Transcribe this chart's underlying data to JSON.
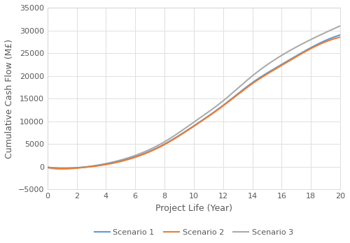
{
  "xlabel": "Project Life (Year)",
  "ylabel": "Cumulative Cash Flow (M£)",
  "xlim": [
    0,
    20
  ],
  "ylim": [
    -5000,
    35000
  ],
  "xticks": [
    0,
    2,
    4,
    6,
    8,
    10,
    12,
    14,
    16,
    18,
    20
  ],
  "yticks": [
    -5000,
    0,
    5000,
    10000,
    15000,
    20000,
    25000,
    30000,
    35000
  ],
  "scenario1_color": "#5B9BD5",
  "scenario2_color": "#ED7D31",
  "scenario3_color": "#ABABAB",
  "scenario1_label": "Scenario 1",
  "scenario2_label": "Scenario 2",
  "scenario3_label": "Scenario 3",
  "grid_color": "#E0E0E0",
  "bg_color": "#FFFFFF",
  "linewidth": 1.5,
  "legend_fontsize": 8,
  "axis_label_fontsize": 9,
  "tick_fontsize": 8,
  "scenario1_points": [
    0,
    1,
    2,
    4,
    6,
    8,
    10,
    12,
    14,
    16,
    18,
    20
  ],
  "scenario1_values": [
    -100,
    -300,
    -200,
    600,
    2200,
    5000,
    9000,
    13500,
    18500,
    22500,
    26200,
    29000
  ],
  "scenario2_points": [
    0,
    1,
    2,
    4,
    6,
    8,
    10,
    12,
    14,
    16,
    18,
    20
  ],
  "scenario2_values": [
    -100,
    -350,
    -250,
    500,
    2100,
    4900,
    8900,
    13400,
    18300,
    22300,
    26000,
    28500
  ],
  "scenario3_points": [
    0,
    1,
    2,
    4,
    6,
    8,
    10,
    12,
    14,
    16,
    18,
    20
  ],
  "scenario3_values": [
    -200,
    -500,
    -300,
    700,
    2500,
    5500,
    9800,
    14500,
    20000,
    24500,
    28000,
    31000
  ]
}
